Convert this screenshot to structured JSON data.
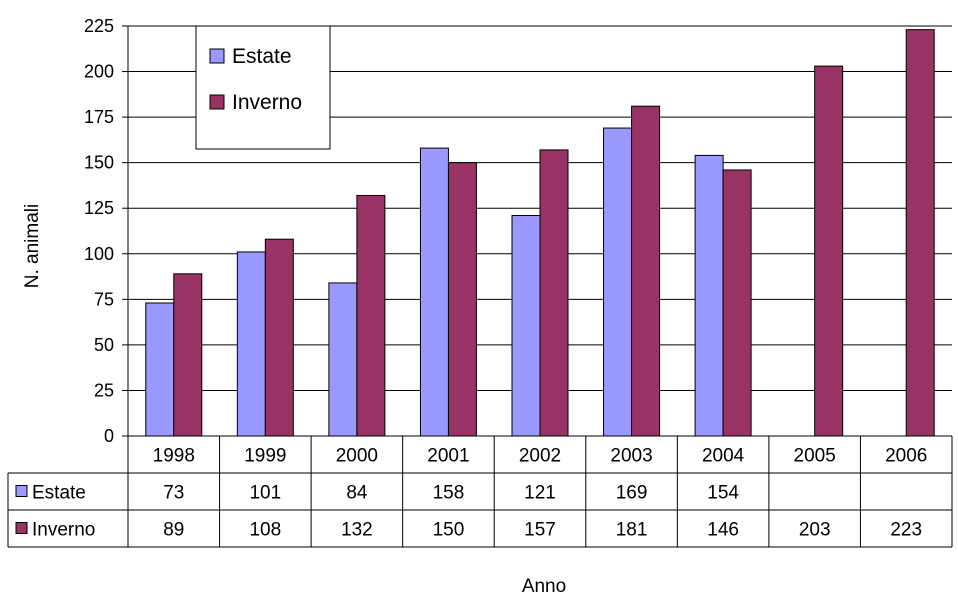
{
  "chart_data": {
    "type": "bar",
    "categories": [
      "1998",
      "1999",
      "2000",
      "2001",
      "2002",
      "2003",
      "2004",
      "2005",
      "2006"
    ],
    "series": [
      {
        "name": "Estate",
        "color": "#9999ff",
        "values": [
          73,
          101,
          84,
          158,
          121,
          169,
          154,
          null,
          null
        ]
      },
      {
        "name": "Inverno",
        "color": "#993366",
        "values": [
          89,
          108,
          132,
          150,
          157,
          181,
          146,
          203,
          223
        ]
      }
    ],
    "xlabel": "Anno",
    "ylabel": "N. animali",
    "ylim": [
      0,
      225
    ],
    "yticks": [
      "0",
      "25",
      "50",
      "75",
      "100",
      "125",
      "150",
      "175",
      "200",
      "225"
    ],
    "grid": true,
    "legend": "top-left",
    "data_table": true
  }
}
